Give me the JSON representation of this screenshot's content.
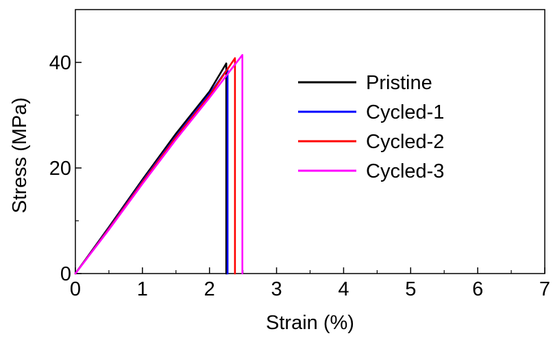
{
  "chart_data": {
    "type": "line",
    "title": "",
    "xlabel": "Strain (%)",
    "ylabel": "Stress (MPa)",
    "xlim": [
      0,
      7
    ],
    "ylim": [
      0,
      50
    ],
    "x_ticks": [
      0,
      1,
      2,
      3,
      4,
      5,
      6,
      7
    ],
    "y_ticks": [
      0,
      20,
      40
    ],
    "grid": false,
    "legend_position": "right",
    "series": [
      {
        "name": "Pristine",
        "color": "#000000",
        "points": [
          [
            0,
            0
          ],
          [
            0.5,
            8.8
          ],
          [
            1.0,
            17.8
          ],
          [
            1.5,
            26.5
          ],
          [
            2.0,
            34.5
          ],
          [
            2.25,
            39.8
          ],
          [
            2.25,
            0
          ]
        ]
      },
      {
        "name": "Cycled-1",
        "color": "#0000ff",
        "points": [
          [
            0,
            0
          ],
          [
            0.5,
            8.6
          ],
          [
            1.0,
            17.5
          ],
          [
            1.5,
            26.0
          ],
          [
            2.0,
            34.0
          ],
          [
            2.27,
            38.8
          ],
          [
            2.27,
            0
          ]
        ]
      },
      {
        "name": "Cycled-2",
        "color": "#ff0000",
        "points": [
          [
            0,
            0
          ],
          [
            0.5,
            8.5
          ],
          [
            1.0,
            17.3
          ],
          [
            1.5,
            25.8
          ],
          [
            2.0,
            33.7
          ],
          [
            2.38,
            40.8
          ],
          [
            2.38,
            0
          ]
        ]
      },
      {
        "name": "Cycled-3",
        "color": "#ff00ff",
        "points": [
          [
            0,
            0
          ],
          [
            0.5,
            8.3
          ],
          [
            1.0,
            17.0
          ],
          [
            1.5,
            25.4
          ],
          [
            2.0,
            33.3
          ],
          [
            2.3,
            38.3
          ],
          [
            2.49,
            41.4
          ],
          [
            2.49,
            0
          ]
        ]
      }
    ]
  }
}
